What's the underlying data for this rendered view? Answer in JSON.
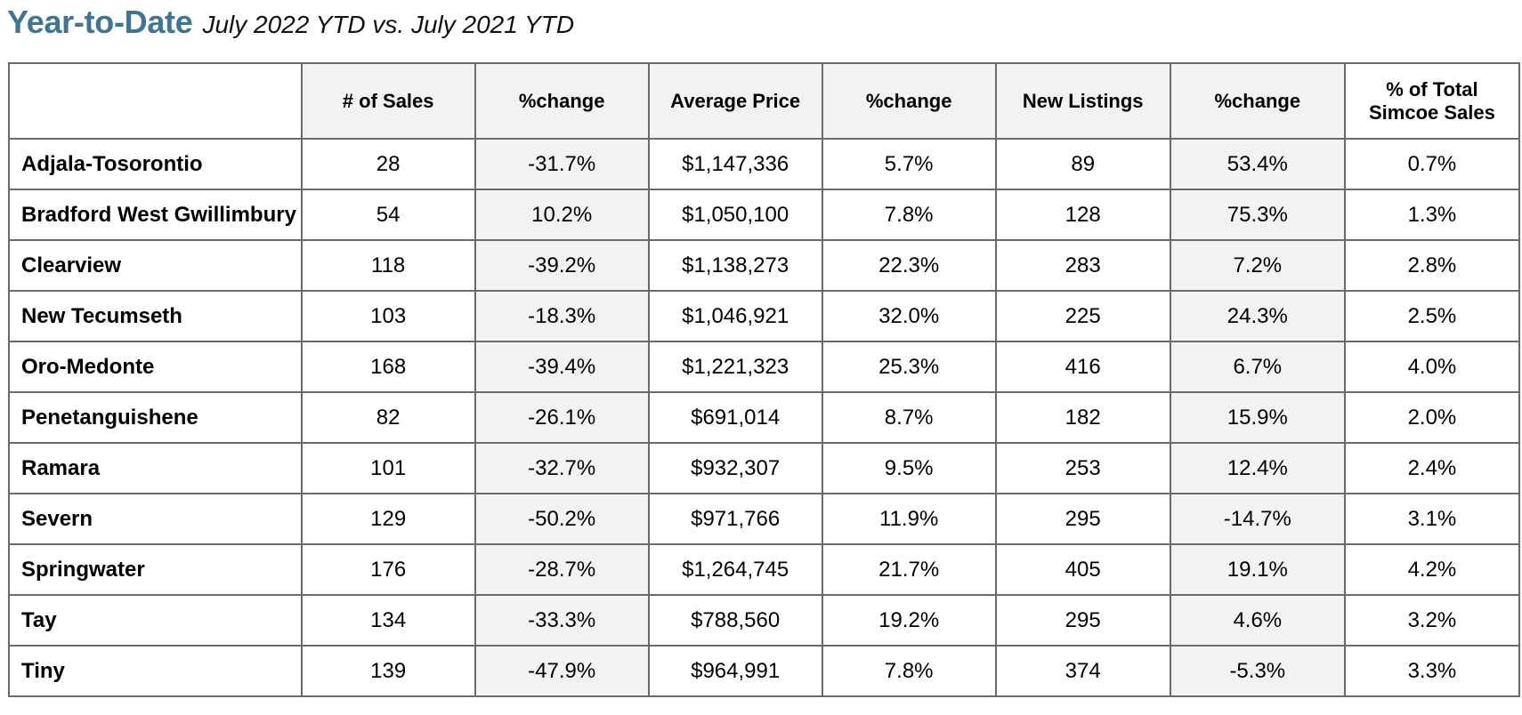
{
  "title": {
    "main": "Year-to-Date",
    "subtitle": "July 2022 YTD vs. July 2021 YTD"
  },
  "table": {
    "headers": [
      "",
      "# of Sales",
      "%change",
      "Average Price",
      "%change",
      "New Listings",
      "%change",
      "% of Total Simcoe Sales"
    ],
    "rows": [
      {
        "municipality": "Adjala-Tosorontio",
        "sales": "28",
        "sales_change": "-31.7%",
        "avg_price": "$1,147,336",
        "price_change": "5.7%",
        "new_listings": "89",
        "listings_change": "53.4%",
        "pct_total": "0.7%"
      },
      {
        "municipality": "Bradford West Gwillimbury",
        "sales": "54",
        "sales_change": "10.2%",
        "avg_price": "$1,050,100",
        "price_change": "7.8%",
        "new_listings": "128",
        "listings_change": "75.3%",
        "pct_total": "1.3%"
      },
      {
        "municipality": "Clearview",
        "sales": "118",
        "sales_change": "-39.2%",
        "avg_price": "$1,138,273",
        "price_change": "22.3%",
        "new_listings": "283",
        "listings_change": "7.2%",
        "pct_total": "2.8%"
      },
      {
        "municipality": "New Tecumseth",
        "sales": "103",
        "sales_change": "-18.3%",
        "avg_price": "$1,046,921",
        "price_change": "32.0%",
        "new_listings": "225",
        "listings_change": "24.3%",
        "pct_total": "2.5%"
      },
      {
        "municipality": "Oro-Medonte",
        "sales": "168",
        "sales_change": "-39.4%",
        "avg_price": "$1,221,323",
        "price_change": "25.3%",
        "new_listings": "416",
        "listings_change": "6.7%",
        "pct_total": "4.0%"
      },
      {
        "municipality": "Penetanguishene",
        "sales": "82",
        "sales_change": "-26.1%",
        "avg_price": "$691,014",
        "price_change": "8.7%",
        "new_listings": "182",
        "listings_change": "15.9%",
        "pct_total": "2.0%"
      },
      {
        "municipality": "Ramara",
        "sales": "101",
        "sales_change": "-32.7%",
        "avg_price": "$932,307",
        "price_change": "9.5%",
        "new_listings": "253",
        "listings_change": "12.4%",
        "pct_total": "2.4%"
      },
      {
        "municipality": "Severn",
        "sales": "129",
        "sales_change": "-50.2%",
        "avg_price": "$971,766",
        "price_change": "11.9%",
        "new_listings": "295",
        "listings_change": "-14.7%",
        "pct_total": "3.1%"
      },
      {
        "municipality": "Springwater",
        "sales": "176",
        "sales_change": "-28.7%",
        "avg_price": "$1,264,745",
        "price_change": "21.7%",
        "new_listings": "405",
        "listings_change": "19.1%",
        "pct_total": "4.2%"
      },
      {
        "municipality": "Tay",
        "sales": "134",
        "sales_change": "-33.3%",
        "avg_price": "$788,560",
        "price_change": "19.2%",
        "new_listings": "295",
        "listings_change": "4.6%",
        "pct_total": "3.2%"
      },
      {
        "municipality": "Tiny",
        "sales": "139",
        "sales_change": "-47.9%",
        "avg_price": "$964,991",
        "price_change": "7.8%",
        "new_listings": "374",
        "listings_change": "-5.3%",
        "pct_total": "3.3%"
      }
    ]
  },
  "colors": {
    "title": "#3f7590",
    "shaded_column": "#f2f2f2",
    "border": "#6b6b6b"
  }
}
